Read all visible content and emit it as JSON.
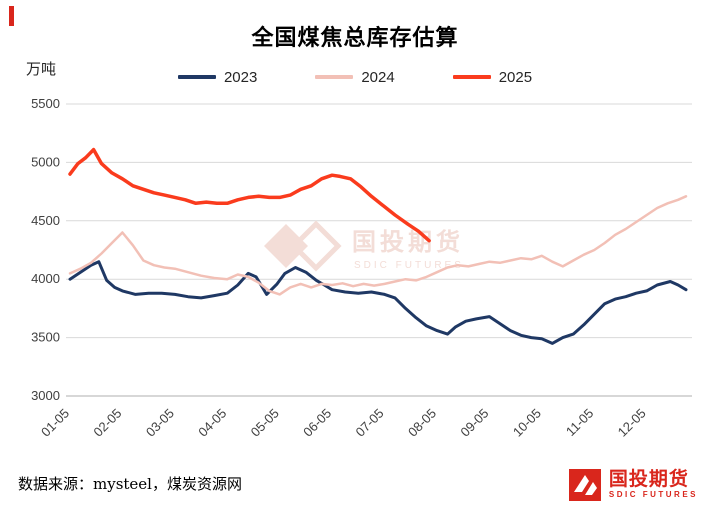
{
  "page": {
    "title": "全国煤焦总库存估算",
    "unit_label": "万吨",
    "source_text": "数据来源：mysteel，煤炭资源网"
  },
  "watermark": {
    "line1": "国投期货",
    "line2": "SDIC FUTURES",
    "color": "#f3ddd7"
  },
  "logo": {
    "name_cn": "国投期货",
    "name_en": "SDIC FUTURES",
    "color": "#d9261c"
  },
  "chart_data": {
    "type": "line",
    "title": "全国煤焦总库存估算",
    "ylabel": "万吨",
    "ylim": [
      3000,
      5500
    ],
    "yticks": [
      3000,
      3500,
      4000,
      4500,
      5000,
      5500
    ],
    "x_range": [
      0,
      11.75
    ],
    "x_tick_labels": [
      "01-05",
      "02-05",
      "03-05",
      "04-05",
      "05-05",
      "06-05",
      "07-05",
      "08-05",
      "09-05",
      "10-05",
      "11-05",
      "12-05"
    ],
    "grid": "horizontal",
    "legend_position": "top",
    "grid_color": "#d9d9d9",
    "axis_color": "#bfbfbf",
    "tick_color": "#404040",
    "series": [
      {
        "name": "2023",
        "color": "#1f3864",
        "stroke_width": 3,
        "points": [
          [
            0,
            4000
          ],
          [
            0.2,
            4060
          ],
          [
            0.4,
            4120
          ],
          [
            0.55,
            4150
          ],
          [
            0.7,
            3990
          ],
          [
            0.85,
            3930
          ],
          [
            1,
            3900
          ],
          [
            1.25,
            3870
          ],
          [
            1.5,
            3880
          ],
          [
            1.75,
            3880
          ],
          [
            2,
            3870
          ],
          [
            2.25,
            3850
          ],
          [
            2.5,
            3840
          ],
          [
            2.75,
            3860
          ],
          [
            3,
            3880
          ],
          [
            3.2,
            3950
          ],
          [
            3.4,
            4050
          ],
          [
            3.55,
            4020
          ],
          [
            3.75,
            3870
          ],
          [
            3.95,
            3960
          ],
          [
            4.1,
            4050
          ],
          [
            4.3,
            4100
          ],
          [
            4.5,
            4060
          ],
          [
            4.7,
            3990
          ],
          [
            4.85,
            3950
          ],
          [
            5,
            3910
          ],
          [
            5.25,
            3890
          ],
          [
            5.5,
            3880
          ],
          [
            5.75,
            3890
          ],
          [
            6,
            3870
          ],
          [
            6.2,
            3840
          ],
          [
            6.4,
            3750
          ],
          [
            6.6,
            3670
          ],
          [
            6.8,
            3600
          ],
          [
            7,
            3560
          ],
          [
            7.2,
            3530
          ],
          [
            7.35,
            3590
          ],
          [
            7.55,
            3640
          ],
          [
            7.75,
            3660
          ],
          [
            8,
            3680
          ],
          [
            8.2,
            3620
          ],
          [
            8.4,
            3560
          ],
          [
            8.6,
            3520
          ],
          [
            8.8,
            3500
          ],
          [
            9,
            3490
          ],
          [
            9.2,
            3450
          ],
          [
            9.4,
            3500
          ],
          [
            9.6,
            3530
          ],
          [
            9.8,
            3610
          ],
          [
            10,
            3700
          ],
          [
            10.2,
            3790
          ],
          [
            10.4,
            3830
          ],
          [
            10.6,
            3850
          ],
          [
            10.8,
            3880
          ],
          [
            11,
            3900
          ],
          [
            11.2,
            3950
          ],
          [
            11.45,
            3980
          ],
          [
            11.6,
            3950
          ],
          [
            11.75,
            3910
          ]
        ]
      },
      {
        "name": "2024",
        "color": "#f2c0b6",
        "stroke_width": 2.5,
        "points": [
          [
            0,
            4050
          ],
          [
            0.2,
            4090
          ],
          [
            0.4,
            4140
          ],
          [
            0.6,
            4220
          ],
          [
            0.8,
            4310
          ],
          [
            1,
            4400
          ],
          [
            1.2,
            4290
          ],
          [
            1.4,
            4160
          ],
          [
            1.6,
            4120
          ],
          [
            1.8,
            4100
          ],
          [
            2,
            4090
          ],
          [
            2.25,
            4060
          ],
          [
            2.5,
            4030
          ],
          [
            2.75,
            4010
          ],
          [
            3,
            4000
          ],
          [
            3.2,
            4040
          ],
          [
            3.4,
            4020
          ],
          [
            3.6,
            3970
          ],
          [
            3.8,
            3900
          ],
          [
            4,
            3870
          ],
          [
            4.2,
            3930
          ],
          [
            4.4,
            3960
          ],
          [
            4.6,
            3930
          ],
          [
            4.8,
            3960
          ],
          [
            5,
            3950
          ],
          [
            5.2,
            3965
          ],
          [
            5.4,
            3940
          ],
          [
            5.6,
            3960
          ],
          [
            5.8,
            3945
          ],
          [
            6,
            3960
          ],
          [
            6.2,
            3980
          ],
          [
            6.4,
            4000
          ],
          [
            6.6,
            3990
          ],
          [
            6.8,
            4020
          ],
          [
            7,
            4060
          ],
          [
            7.2,
            4100
          ],
          [
            7.4,
            4120
          ],
          [
            7.6,
            4110
          ],
          [
            7.8,
            4130
          ],
          [
            8,
            4150
          ],
          [
            8.2,
            4140
          ],
          [
            8.4,
            4160
          ],
          [
            8.6,
            4180
          ],
          [
            8.8,
            4170
          ],
          [
            9,
            4200
          ],
          [
            9.2,
            4150
          ],
          [
            9.4,
            4110
          ],
          [
            9.6,
            4160
          ],
          [
            9.8,
            4210
          ],
          [
            10,
            4250
          ],
          [
            10.2,
            4310
          ],
          [
            10.4,
            4380
          ],
          [
            10.6,
            4430
          ],
          [
            10.8,
            4490
          ],
          [
            11,
            4550
          ],
          [
            11.2,
            4610
          ],
          [
            11.4,
            4650
          ],
          [
            11.6,
            4680
          ],
          [
            11.75,
            4710
          ]
        ]
      },
      {
        "name": "2025",
        "color": "#fa3b1d",
        "stroke_width": 3.5,
        "points": [
          [
            0,
            4900
          ],
          [
            0.15,
            4990
          ],
          [
            0.3,
            5040
          ],
          [
            0.45,
            5110
          ],
          [
            0.6,
            4990
          ],
          [
            0.8,
            4910
          ],
          [
            1,
            4860
          ],
          [
            1.2,
            4800
          ],
          [
            1.4,
            4770
          ],
          [
            1.6,
            4740
          ],
          [
            1.8,
            4720
          ],
          [
            2,
            4700
          ],
          [
            2.2,
            4680
          ],
          [
            2.4,
            4650
          ],
          [
            2.6,
            4660
          ],
          [
            2.8,
            4650
          ],
          [
            3,
            4650
          ],
          [
            3.2,
            4680
          ],
          [
            3.4,
            4700
          ],
          [
            3.6,
            4710
          ],
          [
            3.8,
            4700
          ],
          [
            4,
            4700
          ],
          [
            4.2,
            4720
          ],
          [
            4.4,
            4770
          ],
          [
            4.6,
            4800
          ],
          [
            4.8,
            4860
          ],
          [
            5,
            4890
          ],
          [
            5.15,
            4880
          ],
          [
            5.35,
            4860
          ],
          [
            5.55,
            4790
          ],
          [
            5.75,
            4710
          ],
          [
            6,
            4620
          ],
          [
            6.2,
            4550
          ],
          [
            6.45,
            4470
          ],
          [
            6.65,
            4410
          ],
          [
            6.85,
            4330
          ]
        ]
      }
    ]
  }
}
